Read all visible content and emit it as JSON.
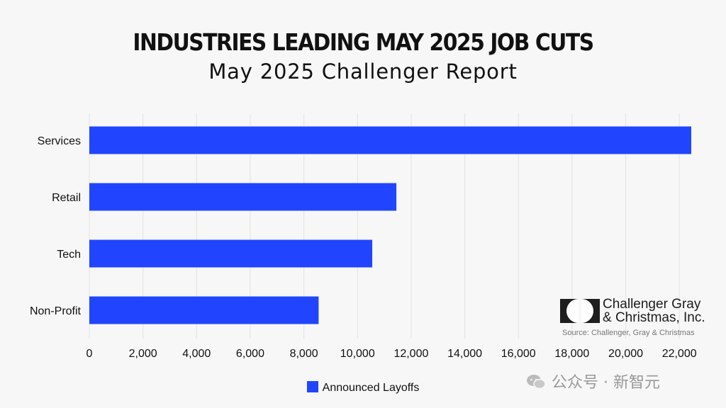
{
  "title": "INDUSTRIES LEADING MAY 2025 JOB CUTS",
  "subtitle": "May 2025 Challenger Report",
  "colors": {
    "bar": "#2145ff",
    "background": "#f7f7f7",
    "grid": "#e3e3e3"
  },
  "chart_data": {
    "type": "bar",
    "orientation": "horizontal",
    "categories": [
      "Services",
      "Retail",
      "Tech",
      "Non-Profit"
    ],
    "series": [
      {
        "name": "Announced Layoffs",
        "values": [
          22445,
          11450,
          10550,
          8550
        ]
      }
    ],
    "xlim": [
      0,
      23000
    ],
    "xticks": [
      "0",
      "2,000",
      "4,000",
      "6,000",
      "8,000",
      "10,000",
      "12,000",
      "14,000",
      "16,000",
      "18,000",
      "20,000",
      "22,000"
    ],
    "grid": true,
    "legend_position": "bottom-center"
  },
  "legend": {
    "label": "Announced Layoffs"
  },
  "logo": {
    "line1": "Challenger Gray",
    "line2": "& Christmas, Inc."
  },
  "source": "Source: Challenger, Gray & Christmas",
  "watermark": "公众号 · 新智元"
}
